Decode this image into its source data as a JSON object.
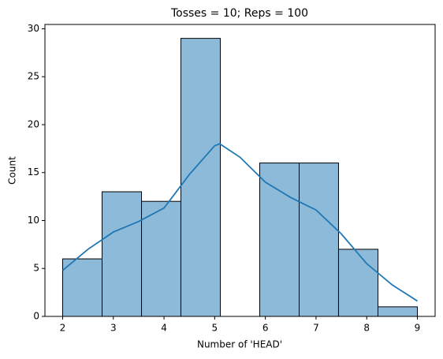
{
  "chart_data": {
    "type": "histogram",
    "title": "Tosses = 10; Reps = 100",
    "xlabel": "Number of 'HEAD'",
    "ylabel": "Count",
    "bins": [
      2,
      2.778,
      3.556,
      4.333,
      5.111,
      5.889,
      6.667,
      7.444,
      8.222,
      9
    ],
    "values": [
      6,
      13,
      12,
      29,
      0,
      16,
      16,
      7,
      1
    ],
    "color": "#8ebad9",
    "edgecolor": "#000000",
    "kde": {
      "x": [
        2,
        2.5,
        3,
        3.5,
        4,
        4.5,
        5,
        5.1,
        5.5,
        6,
        6.5,
        7,
        7.5,
        8,
        8.5,
        9
      ],
      "values": [
        4.8,
        7,
        8.8,
        9.9,
        11.3,
        14.8,
        17.8,
        18,
        16.6,
        14,
        12.4,
        11.1,
        8.6,
        5.5,
        3.3,
        1.6
      ],
      "color": "#1f77b4"
    },
    "xlim": [
      1.65,
      9.35
    ],
    "ylim": [
      0,
      30.45
    ],
    "xticks": [
      2,
      3,
      4,
      5,
      6,
      7,
      8,
      9
    ],
    "yticks": [
      0,
      5,
      10,
      15,
      20,
      25,
      30
    ]
  }
}
